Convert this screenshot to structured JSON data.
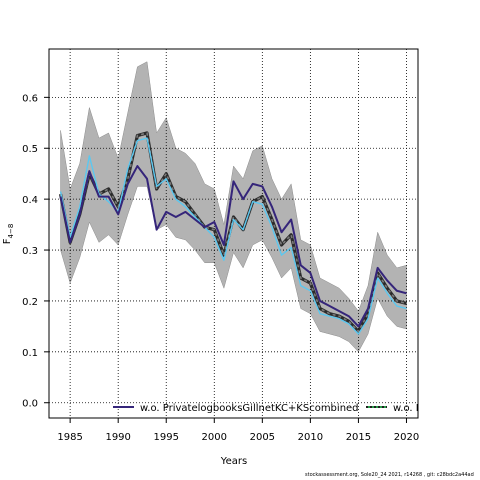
{
  "chart_data": {
    "type": "line",
    "title": "",
    "xlabel": "Years",
    "ylabel": "F",
    "ylabel_sub": "4−8",
    "xlim": [
      1982.8,
      2021.2
    ],
    "ylim": [
      -0.03,
      0.695
    ],
    "xticks": [
      1985,
      1990,
      1995,
      2000,
      2005,
      2010,
      2015,
      2020
    ],
    "yticks": [
      "0.0",
      "0.1",
      "0.2",
      "0.3",
      "0.4",
      "0.5",
      "0.6"
    ],
    "grid": true,
    "legend_placement": "bottom-center",
    "x": [
      1984,
      1985,
      1986,
      1987,
      1988,
      1989,
      1990,
      1991,
      1992,
      1993,
      1994,
      1995,
      1996,
      1997,
      1998,
      1999,
      2000,
      2001,
      2002,
      2003,
      2004,
      2005,
      2006,
      2007,
      2008,
      2009,
      2010,
      2011,
      2012,
      2013,
      2014,
      2015,
      2016,
      2017,
      2018,
      2019,
      2020
    ],
    "band": {
      "upper": [
        0.535,
        0.42,
        0.47,
        0.58,
        0.52,
        0.53,
        0.48,
        0.57,
        0.66,
        0.67,
        0.53,
        0.56,
        0.5,
        0.49,
        0.47,
        0.43,
        0.42,
        0.35,
        0.465,
        0.44,
        0.495,
        0.505,
        0.44,
        0.4,
        0.43,
        0.32,
        0.31,
        0.245,
        0.235,
        0.225,
        0.205,
        0.18,
        0.23,
        0.335,
        0.29,
        0.265,
        0.27
      ],
      "lower": [
        0.3,
        0.235,
        0.285,
        0.355,
        0.315,
        0.33,
        0.31,
        0.37,
        0.425,
        0.425,
        0.34,
        0.35,
        0.325,
        0.32,
        0.3,
        0.275,
        0.275,
        0.225,
        0.295,
        0.265,
        0.31,
        0.32,
        0.285,
        0.245,
        0.265,
        0.185,
        0.175,
        0.14,
        0.135,
        0.13,
        0.12,
        0.1,
        0.135,
        0.205,
        0.17,
        0.15,
        0.145
      ]
    },
    "series": [
      {
        "name": "",
        "color": "#2b2b2b",
        "style": "solid",
        "width": 3.2,
        "values": [
          0.41,
          0.315,
          0.37,
          0.45,
          0.41,
          0.42,
          0.385,
          0.44,
          0.525,
          0.53,
          0.42,
          0.45,
          0.405,
          0.395,
          0.37,
          0.345,
          0.34,
          0.29,
          0.365,
          0.34,
          0.395,
          0.405,
          0.36,
          0.31,
          0.33,
          0.245,
          0.235,
          0.185,
          0.175,
          0.17,
          0.16,
          0.14,
          0.175,
          0.255,
          0.225,
          0.2,
          0.195
        ]
      },
      {
        "name": "",
        "color": "#7a7a7a",
        "style": "dotted",
        "width": 1.6,
        "values": [
          0.41,
          0.315,
          0.37,
          0.45,
          0.41,
          0.42,
          0.385,
          0.44,
          0.525,
          0.53,
          0.42,
          0.45,
          0.405,
          0.395,
          0.37,
          0.345,
          0.34,
          0.29,
          0.365,
          0.34,
          0.395,
          0.405,
          0.36,
          0.31,
          0.33,
          0.245,
          0.235,
          0.185,
          0.175,
          0.17,
          0.16,
          0.14,
          0.175,
          0.255,
          0.225,
          0.2,
          0.195
        ]
      },
      {
        "name": "",
        "color": "#5bc8f0",
        "style": "solid",
        "width": 1.4,
        "values": [
          0.415,
          0.325,
          0.385,
          0.485,
          0.41,
          0.395,
          0.375,
          0.46,
          0.515,
          0.52,
          0.425,
          0.44,
          0.4,
          0.385,
          0.365,
          0.345,
          0.325,
          0.28,
          0.36,
          0.34,
          0.395,
          0.39,
          0.345,
          0.29,
          0.305,
          0.23,
          0.22,
          0.175,
          0.17,
          0.165,
          0.155,
          0.135,
          0.165,
          0.245,
          0.215,
          0.19,
          0.185
        ]
      },
      {
        "name": "w.o. PrivatelogbooksGillnetKC+KScombined",
        "color": "#35257a",
        "style": "solid",
        "width": 2,
        "values": [
          0.405,
          0.315,
          0.37,
          0.455,
          0.405,
          0.405,
          0.37,
          0.43,
          0.465,
          0.44,
          0.34,
          0.375,
          0.365,
          0.375,
          0.36,
          0.345,
          0.355,
          0.31,
          0.435,
          0.4,
          0.43,
          0.425,
          0.385,
          0.335,
          0.36,
          0.27,
          0.255,
          0.2,
          0.19,
          0.18,
          0.17,
          0.15,
          0.185,
          0.265,
          0.24,
          0.22,
          0.215
        ]
      }
    ],
    "legend": [
      {
        "label": "w.o. PrivatelogbooksGillnetKC+KScombined",
        "color": "#35257a",
        "style": "solid"
      },
      {
        "label": "w.o. F",
        "color": "#1f1f1f",
        "style": "dashed-green"
      }
    ]
  },
  "footer": "stockassessment.org, Sole20_24 2021, r14268 , git: c28bdc2a44ad"
}
